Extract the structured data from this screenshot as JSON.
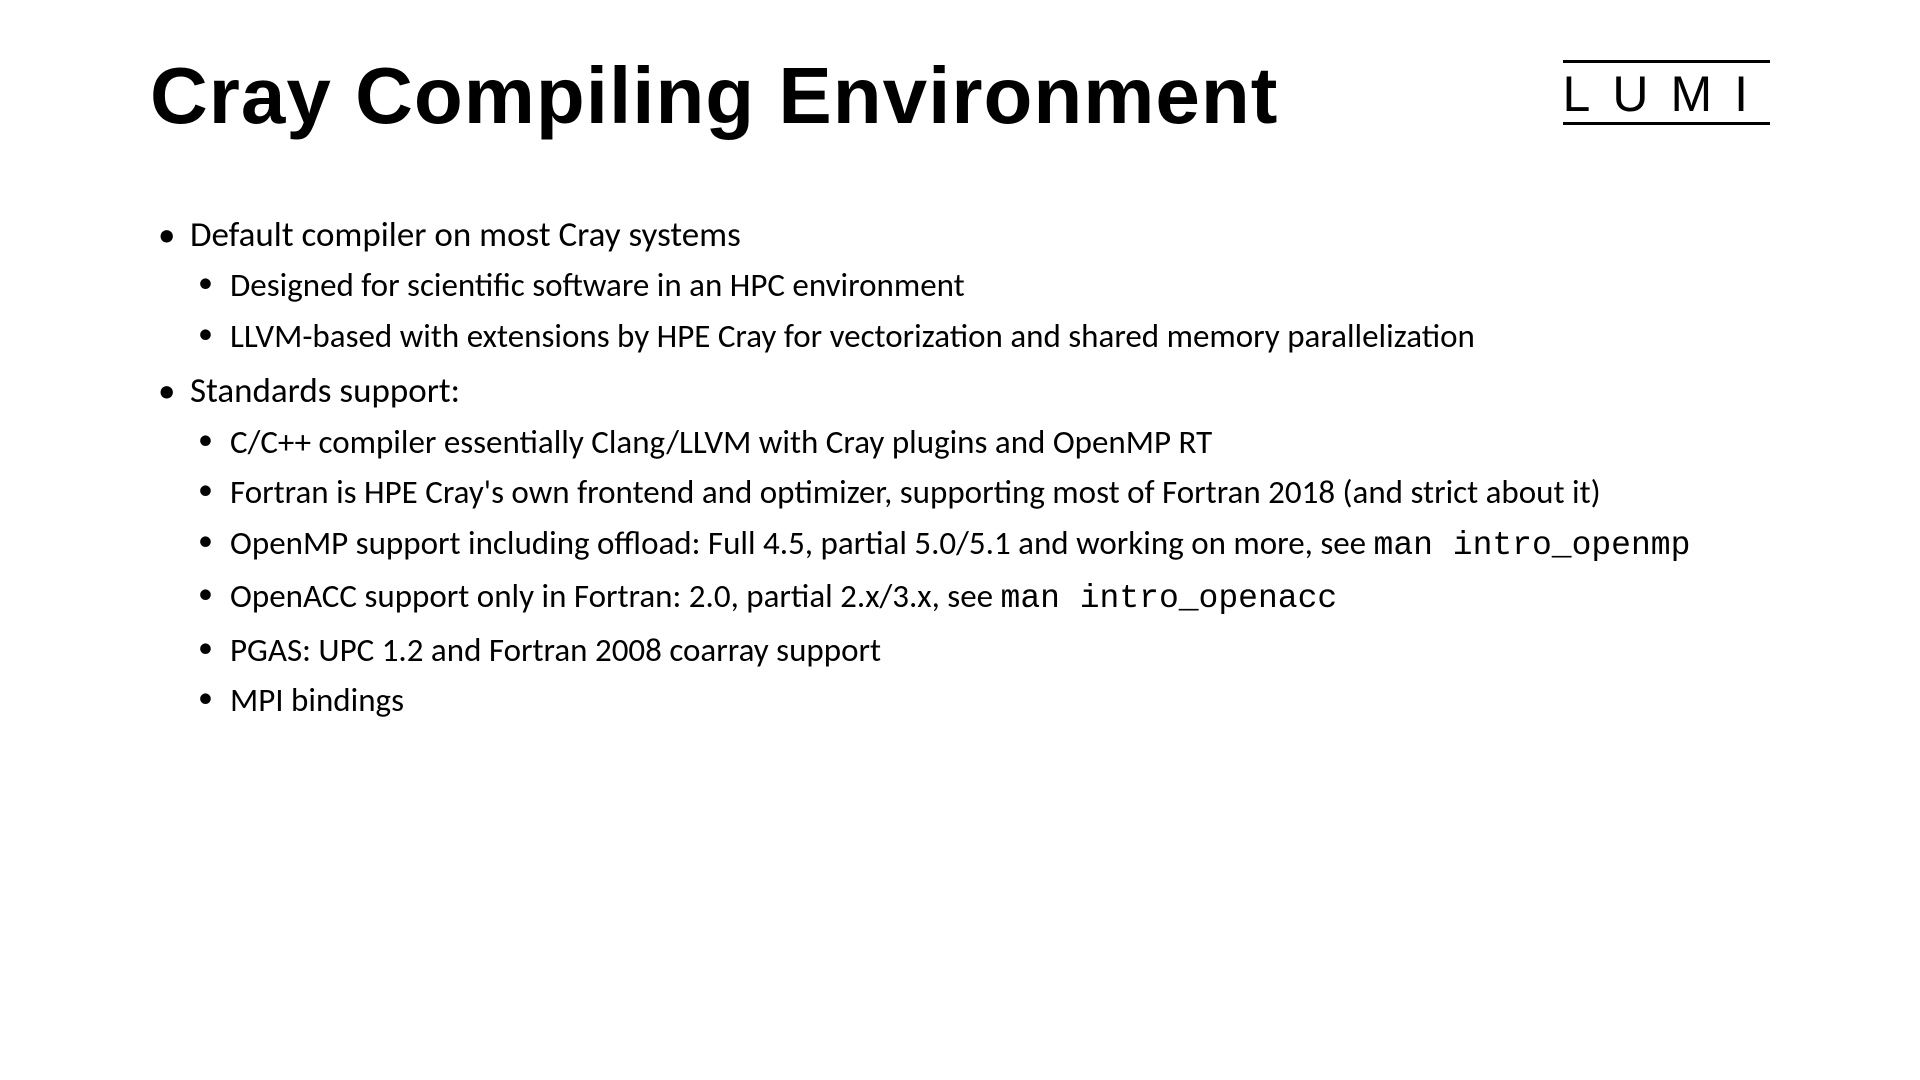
{
  "title": "Cray Compiling Environment",
  "logo": "LUMI",
  "bullets": {
    "b1": "Default compiler on most Cray systems",
    "b1_1": "Designed for scientific software in an HPC environment",
    "b1_2": "LLVM-based with extensions by HPE Cray for vectorization and shared memory parallelization",
    "b2": "Standards support:",
    "b2_1": "C/C++ compiler essentially Clang/LLVM with Cray plugins and OpenMP RT",
    "b2_2": "Fortran is HPE Cray's own frontend and optimizer, supporting most of Fortran 2018 (and strict about it)",
    "b2_3a": "OpenMP support including offload: Full 4.5, partial 5.0/5.1 and working on more, see ",
    "b2_3b": "man intro_openmp",
    "b2_4a": "OpenACC support only in Fortran: 2.0, partial 2.x/3.x, see ",
    "b2_4b": "man intro_openacc",
    "b2_5": "PGAS: UPC 1.2 and Fortran 2008 coarray support",
    "b2_6": "MPI bindings"
  },
  "styling": {
    "title_fontsize": 80,
    "body_fontsize": 35,
    "sub_fontsize": 33,
    "background_color": "#ffffff",
    "text_color": "#000000",
    "logo_letter_spacing": 22
  }
}
